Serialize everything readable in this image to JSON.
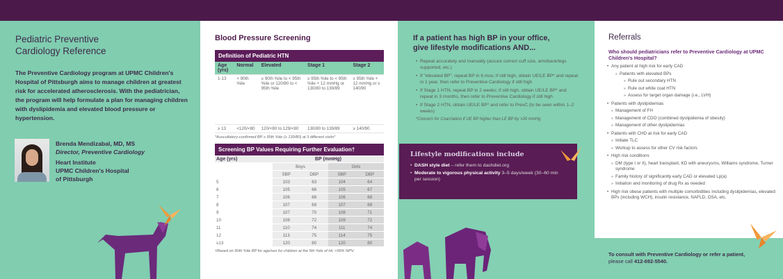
{
  "panel1": {
    "title_line1": "Pediatric Preventive",
    "title_line2": "Cardiology Reference",
    "body": "The Preventive Cardiology program at UPMC Children's Hospital of Pittsburgh aims to manage children at greatest risk for accelerated atherosclerosis. With the pediatrician, the program will help formulate a plan for managing children with dyslipidemia and elevated blood pressure or hypertension.",
    "name": "Brenda Mendizabal, MD, MS",
    "role": "Director, Preventive Cardiology",
    "org1": "Heart Institute",
    "org2": "UPMC Children's Hospital",
    "org3": "of Pittsburgh"
  },
  "panel2": {
    "title": "Blood Pressure Screening",
    "table1": {
      "title": "Definition of Pediatric HTN",
      "headers": [
        "Age (yrs)",
        "Normal",
        "Elevated",
        "Stage 1",
        "Stage 2"
      ],
      "rows": [
        [
          "1-13",
          "< 90th %ile",
          "≥ 90th %ile to < 95th %ile or 120/80 to < 95th %ile",
          "≥ 95th %ile to < 95th %ile + 12 mmHg or 130/80 to 139/89",
          "≥ 95th %ile + 12 mmHg or ≥ 140/90"
        ],
        [
          "≥ 13",
          "<120/<80",
          "120/<80 to 129/<80",
          "130/80 to 139/89",
          "≥ 140/90"
        ]
      ],
      "note": "*Auscultatory-confirmed BP ≥ 95th %ile (≥ 130/80) at 3 different visits*"
    },
    "table2": {
      "title": "Screening BP Values Requiring Further Evaluation†",
      "age_header": "Age (yrs)",
      "bp_header": "BP (mmHg)",
      "boys": "Boys",
      "girls": "Girls",
      "sub": [
        "SBP",
        "DBP",
        "SBP",
        "DBP"
      ],
      "rows": [
        [
          "5",
          "103",
          "63",
          "104",
          "64"
        ],
        [
          "6",
          "105",
          "66",
          "105",
          "67"
        ],
        [
          "7",
          "106",
          "68",
          "106",
          "68"
        ],
        [
          "8",
          "107",
          "69",
          "107",
          "69"
        ],
        [
          "9",
          "107",
          "70",
          "108",
          "71"
        ],
        [
          "10",
          "108",
          "72",
          "109",
          "72"
        ],
        [
          "11",
          "110",
          "74",
          "111",
          "74"
        ],
        [
          "12",
          "113",
          "75",
          "114",
          "75"
        ],
        [
          "≥13",
          "120",
          "80",
          "120",
          "80"
        ]
      ],
      "note": "†Based on 90th %ile BP for age/sex for children at the 5th %ile of Ht; >99% NPV."
    }
  },
  "panel3": {
    "title_line1": "If a patient has high BP in your office,",
    "title_line2": "give lifestyle modifications AND...",
    "bullets": [
      "Repeat accurately and manually (assure correct cuff size, arm/back/legs supported, etc.)",
      "If \"elevated BP\", repeat BP in 6 mos; if still high, obtain UE/LE BP* and repeat in 1 year, then refer to Preventive Cardiology if still high",
      "If Stage 1 HTN, repeat BP in 2 weeks; if still high, obtain UE/LE BP* and repeat in 3 months, then refer to Preventive Cardiology if still high",
      "If Stage 2 HTN, obtain UE/LE BP* and refer to PrevC (to be seen within 1–2 weeks)"
    ],
    "note": "*Concern for Coarctation if UE BP higher than LE BP by >20 mmHg",
    "lifestyle": {
      "title": "Lifestyle modifications include",
      "item1_bold": "DASH style diet",
      "item1_rest": " – refer them to dashdiet.org",
      "item2_bold": "Moderate to vigorous physical activity",
      "item2_rest": " 3–5 days/week (30–60 min per session)"
    }
  },
  "panel4": {
    "title": "Referrals",
    "question": "Who should pediatricians refer to Preventive Cardiology at UPMC Children's Hospital?",
    "b1": "Any patient at high risk for early CAD",
    "b1a": "Patients with elevated BPs",
    "b1a1": "Rule out secondary HTN",
    "b1a2": "Rule out white coat HTN",
    "b1a3": "Assess for target organ damage (i.e., LVH)",
    "b2": "Patients with dyslipidemias",
    "b2a": "Management of FH",
    "b2b": "Management of CDO (combined dyslipidemia of obesity)",
    "b2c": "Management of other dyslipidemias",
    "b3": "Patients with CHD at risk for early CAD",
    "b3a": "Initiate TLC",
    "b3b": "Workup to assess for other CV risk factors",
    "b4": "High risk conditions",
    "b4a": "DM (type I or II), heart transplant, KD with aneurysms, Williams syndrome, Turner syndrome",
    "b4b": "Family history of significantly early CAD or elevated Lp(a)",
    "b4c": "Initiation and monitoring of drug Rx as needed",
    "b5": "High risk obese patients with multiple comorbidities including dyslipidemias, elevated BPs (including WCH), insulin resistance, NAFLD, OSA, etc.",
    "consult": "To consult with Preventive Cardiology or refer a patient,",
    "consult2": "please call ",
    "phone": "412-692-5540",
    "period": "."
  },
  "colors": {
    "purple": "#5c1d59",
    "green": "#84d0b2",
    "orange": "#f29a3a"
  }
}
